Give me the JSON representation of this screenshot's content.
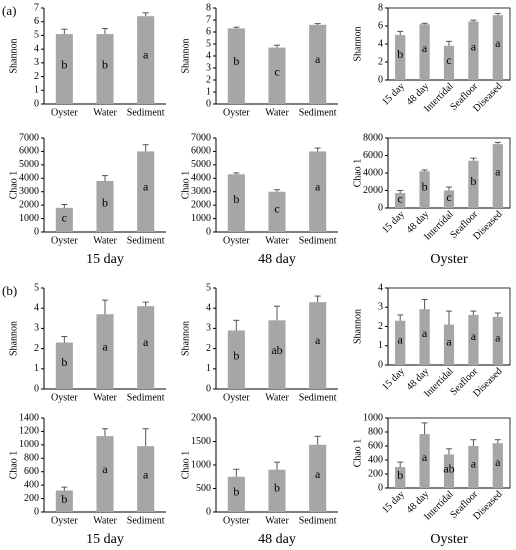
{
  "chart_data": [
    {
      "type": "bar",
      "panel_label": "(a)",
      "ylabel": "Shannon",
      "categories": [
        "Oyster",
        "Water",
        "Sediment"
      ],
      "values": [
        5.1,
        5.1,
        6.4
      ],
      "errors": [
        0.35,
        0.4,
        0.25
      ],
      "letters": [
        "b",
        "b",
        "a"
      ],
      "color": "#a6a6a6",
      "ylim": [
        0,
        7
      ],
      "yticks": [
        0,
        1,
        2,
        3,
        4,
        5,
        6,
        7
      ]
    },
    {
      "type": "bar",
      "ylabel": "Shannon",
      "categories": [
        "Oyster",
        "Water",
        "Sediment"
      ],
      "values": [
        6.3,
        4.7,
        6.6
      ],
      "errors": [
        0.1,
        0.2,
        0.1
      ],
      "letters": [
        "b",
        "c",
        "a"
      ],
      "color": "#a6a6a6",
      "ylim": [
        0,
        8
      ],
      "yticks": [
        0,
        1,
        2,
        3,
        4,
        5,
        6,
        7,
        8
      ]
    },
    {
      "type": "bar",
      "ylabel": "Shannon",
      "categories": [
        "15 day",
        "48 day",
        "Intertidal",
        "Seafloor",
        "Diseased"
      ],
      "values": [
        5.0,
        6.2,
        3.8,
        6.5,
        7.2
      ],
      "errors": [
        0.4,
        0.1,
        0.5,
        0.15,
        0.2
      ],
      "letters": [
        "b",
        "a",
        "c",
        "a",
        "a"
      ],
      "color": "#a6a6a6",
      "ylim": [
        0,
        8
      ],
      "yticks": [
        0,
        2,
        4,
        6,
        8
      ],
      "rotate_labels": true,
      "box": true
    },
    {
      "type": "bar",
      "ylabel": "Chao 1",
      "xlabel": "15 day",
      "categories": [
        "Oyster",
        "Water",
        "Sediment"
      ],
      "values": [
        1800,
        3800,
        6000
      ],
      "errors": [
        250,
        400,
        500
      ],
      "letters": [
        "c",
        "b",
        "a"
      ],
      "color": "#a6a6a6",
      "ylim": [
        0,
        7000
      ],
      "yticks": [
        0,
        1000,
        2000,
        3000,
        4000,
        5000,
        6000,
        7000
      ]
    },
    {
      "type": "bar",
      "ylabel": "Chao 1",
      "xlabel": "48 day",
      "categories": [
        "Oyster",
        "Water",
        "Sediment"
      ],
      "values": [
        4300,
        3000,
        6000
      ],
      "errors": [
        100,
        150,
        250
      ],
      "letters": [
        "b",
        "c",
        "a"
      ],
      "color": "#a6a6a6",
      "ylim": [
        0,
        7000
      ],
      "yticks": [
        0,
        1000,
        2000,
        3000,
        4000,
        5000,
        6000,
        7000
      ]
    },
    {
      "type": "bar",
      "ylabel": "Chao 1",
      "xlabel": "Oyster",
      "categories": [
        "15 day",
        "48 day",
        "Intertidal",
        "Seafloor",
        "Diseased"
      ],
      "values": [
        1700,
        4200,
        2000,
        5400,
        7300
      ],
      "errors": [
        300,
        150,
        400,
        300,
        200
      ],
      "letters": [
        "c",
        "b",
        "c",
        "b",
        "a"
      ],
      "color": "#a6a6a6",
      "ylim": [
        0,
        8000
      ],
      "yticks": [
        0,
        2000,
        4000,
        6000,
        8000
      ],
      "rotate_labels": true,
      "box": true
    },
    {
      "type": "bar",
      "panel_label": "(b)",
      "ylabel": "Shannon",
      "categories": [
        "Oyster",
        "Water",
        "Sediment"
      ],
      "values": [
        2.3,
        3.7,
        4.1
      ],
      "errors": [
        0.3,
        0.7,
        0.2
      ],
      "letters": [
        "b",
        "a",
        "a"
      ],
      "color": "#a6a6a6",
      "ylim": [
        0,
        5
      ],
      "yticks": [
        0,
        1,
        2,
        3,
        4,
        5
      ]
    },
    {
      "type": "bar",
      "ylabel": "Shannon",
      "categories": [
        "Oyster",
        "Water",
        "Sediment"
      ],
      "values": [
        2.9,
        3.4,
        4.3
      ],
      "errors": [
        0.5,
        0.7,
        0.3
      ],
      "letters": [
        "b",
        "ab",
        "a"
      ],
      "color": "#a6a6a6",
      "ylim": [
        0,
        5
      ],
      "yticks": [
        0,
        1,
        2,
        3,
        4,
        5
      ]
    },
    {
      "type": "bar",
      "ylabel": "Shannon",
      "categories": [
        "15 day",
        "48 day",
        "Intertidal",
        "Seafloor",
        "Diseased"
      ],
      "values": [
        2.3,
        2.9,
        2.1,
        2.6,
        2.5
      ],
      "errors": [
        0.3,
        0.5,
        0.7,
        0.2,
        0.2
      ],
      "letters": [
        "a",
        "a",
        "a",
        "a",
        "a"
      ],
      "color": "#a6a6a6",
      "ylim": [
        0,
        4
      ],
      "yticks": [
        0,
        1,
        2,
        3,
        4
      ],
      "rotate_labels": true,
      "box": true
    },
    {
      "type": "bar",
      "ylabel": "Chao 1",
      "xlabel": "15 day",
      "categories": [
        "Oyster",
        "Water",
        "Sediment"
      ],
      "values": [
        320,
        1130,
        980
      ],
      "errors": [
        50,
        110,
        260
      ],
      "letters": [
        "b",
        "a",
        "a"
      ],
      "color": "#a6a6a6",
      "ylim": [
        0,
        1400
      ],
      "yticks": [
        0,
        200,
        400,
        600,
        800,
        1000,
        1200,
        1400
      ]
    },
    {
      "type": "bar",
      "ylabel": "Chao 1",
      "xlabel": "48 day",
      "categories": [
        "Oyster",
        "Water",
        "Sediment"
      ],
      "values": [
        750,
        900,
        1430
      ],
      "errors": [
        160,
        160,
        180
      ],
      "letters": [
        "b",
        "b",
        "a"
      ],
      "color": "#a6a6a6",
      "ylim": [
        0,
        2000
      ],
      "yticks": [
        0,
        500,
        1000,
        1500,
        2000
      ]
    },
    {
      "type": "bar",
      "ylabel": "Chao 1",
      "xlabel": "Oyster",
      "categories": [
        "15 day",
        "48 day",
        "Intertidal",
        "Seafloor",
        "Diseased"
      ],
      "values": [
        300,
        770,
        480,
        600,
        640
      ],
      "errors": [
        70,
        160,
        80,
        90,
        50
      ],
      "letters": [
        "b",
        "a",
        "ab",
        "a",
        "a"
      ],
      "color": "#a6a6a6",
      "ylim": [
        0,
        1000
      ],
      "yticks": [
        0,
        200,
        400,
        600,
        800,
        1000
      ],
      "rotate_labels": true,
      "box": true
    }
  ]
}
